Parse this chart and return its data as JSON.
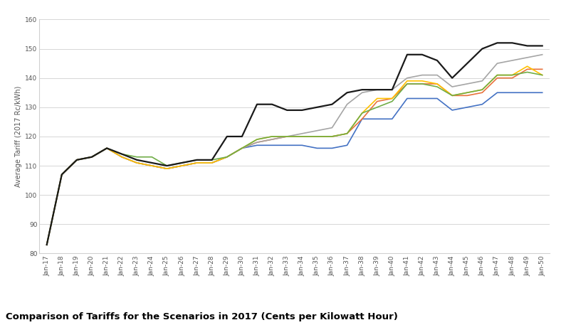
{
  "title": "Comparison of Tariffs for the Scenarios in 2017 (Cents per Kilowatt Hour)",
  "ylabel": "Average Tariff (2017 Rc/kWh)",
  "ylim": [
    80,
    160
  ],
  "yticks": [
    80,
    90,
    100,
    110,
    120,
    130,
    140,
    150,
    160
  ],
  "x_labels": [
    "Jan-17",
    "Jan-18",
    "Jan-19",
    "Jan-20",
    "Jan-21",
    "Jan-22",
    "Jan-23",
    "Jan-24",
    "Jan-25",
    "Jan-26",
    "Jan-27",
    "Jan-28",
    "Jan-29",
    "Jan-30",
    "Jan-31",
    "Jan-32",
    "Jan-33",
    "Jan-34",
    "Jan-35",
    "Jan-36",
    "Jan-37",
    "Jan-38",
    "Jan-39",
    "Jan-40",
    "Jan-41",
    "Jan-42",
    "Jan-43",
    "Jan-44",
    "Jan-45",
    "Jan-46",
    "Jan-47",
    "Jan-48",
    "Jan-49",
    "Jan-50"
  ],
  "series": {
    "IRP3": {
      "color": "#E8723C",
      "linewidth": 1.2,
      "values": [
        83,
        107,
        112,
        113,
        116,
        113,
        111,
        110,
        109,
        110,
        111,
        111,
        113,
        116,
        118,
        119,
        120,
        120,
        120,
        120,
        121,
        126,
        132,
        133,
        138,
        138,
        138,
        134,
        134,
        135,
        140,
        140,
        143,
        143
      ]
    },
    "IRP1": {
      "color": "#4472C4",
      "linewidth": 1.2,
      "values": [
        83,
        107,
        112,
        113,
        116,
        113,
        111,
        110,
        109,
        110,
        111,
        111,
        113,
        116,
        117,
        117,
        117,
        117,
        116,
        116,
        117,
        126,
        126,
        126,
        133,
        133,
        133,
        129,
        130,
        131,
        135,
        135,
        135,
        135
      ]
    },
    "IRP6": {
      "color": "#A5A5A5",
      "linewidth": 1.2,
      "values": [
        83,
        107,
        112,
        113,
        116,
        113,
        111,
        110,
        109,
        110,
        111,
        111,
        113,
        116,
        118,
        119,
        120,
        121,
        122,
        123,
        131,
        135,
        136,
        136,
        140,
        141,
        141,
        137,
        138,
        139,
        145,
        146,
        147,
        148
      ]
    },
    "IRP5": {
      "color": "#FFC000",
      "linewidth": 1.2,
      "values": [
        83,
        107,
        112,
        113,
        116,
        113,
        111,
        110,
        109,
        110,
        111,
        111,
        113,
        116,
        119,
        120,
        120,
        120,
        120,
        120,
        121,
        128,
        133,
        133,
        139,
        139,
        138,
        134,
        135,
        136,
        141,
        141,
        144,
        141
      ]
    },
    "IRP7": {
      "color": "#1A1A1A",
      "linewidth": 1.6,
      "values": [
        83,
        107,
        112,
        113,
        116,
        114,
        112,
        111,
        110,
        111,
        112,
        112,
        120,
        120,
        131,
        131,
        129,
        129,
        130,
        131,
        135,
        136,
        136,
        136,
        148,
        148,
        146,
        140,
        145,
        150,
        152,
        152,
        151,
        151
      ]
    },
    "IRP_Policy": {
      "color": "#70AD47",
      "linewidth": 1.2,
      "values": [
        83,
        107,
        112,
        113,
        116,
        114,
        113,
        113,
        110,
        111,
        112,
        112,
        113,
        116,
        119,
        120,
        120,
        120,
        120,
        120,
        121,
        128,
        130,
        132,
        138,
        138,
        137,
        134,
        135,
        136,
        141,
        141,
        142,
        141
      ]
    }
  },
  "background_color": "#FFFFFF",
  "grid_color": "#D0D0D0",
  "title_fontsize": 9.5,
  "axis_fontsize": 6.5,
  "ylabel_fontsize": 7,
  "legend_fontsize": 7
}
